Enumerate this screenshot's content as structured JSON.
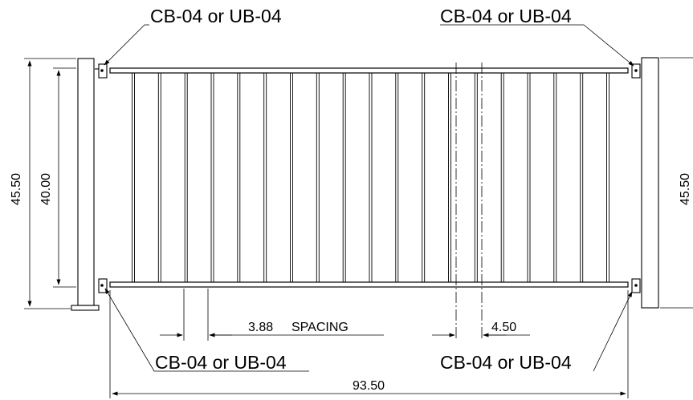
{
  "callouts": {
    "top_left": "CB-04 or UB-04",
    "top_right": "CB-04 or UB-04",
    "bottom_left": "CB-04 or UB-04",
    "bottom_right": "CB-04 or UB-04"
  },
  "dimensions": {
    "left_outer_height": "45.50",
    "left_inner_height": "40.00",
    "right_outer_height": "45.50",
    "spacing_value": "3.88",
    "spacing_label": "SPACING",
    "post_offset": "4.50",
    "overall_width": "93.50"
  },
  "pickets": {
    "count": 19
  }
}
